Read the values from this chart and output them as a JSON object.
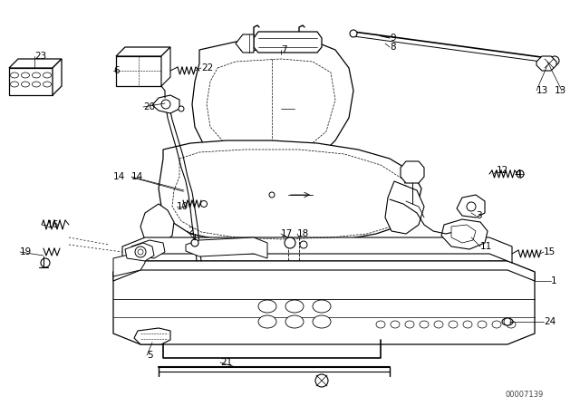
{
  "bg_color": "#ffffff",
  "line_color": "#000000",
  "watermark": "00007139",
  "figsize": [
    6.4,
    4.48
  ],
  "dpi": 100
}
